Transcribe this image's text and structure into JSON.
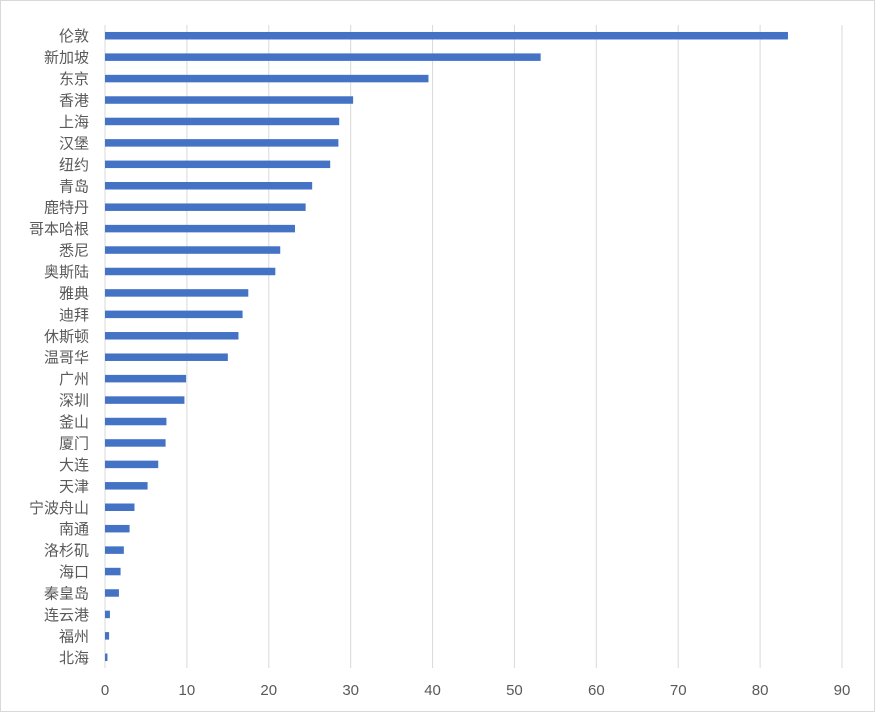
{
  "chart_data": {
    "type": "bar",
    "orientation": "horizontal",
    "title": "",
    "xlabel": "",
    "ylabel": "",
    "xlim": [
      0,
      90
    ],
    "x_ticks": [
      0,
      10,
      20,
      30,
      40,
      50,
      60,
      70,
      80,
      90
    ],
    "grid": "vertical",
    "legend": "none",
    "categories": [
      "伦敦",
      "新加坡",
      "东京",
      "香港",
      "上海",
      "汉堡",
      "纽约",
      "青岛",
      "鹿特丹",
      "哥本哈根",
      "悉尼",
      "奥斯陆",
      "雅典",
      "迪拜",
      "休斯顿",
      "温哥华",
      "广州",
      "深圳",
      "釜山",
      "厦门",
      "大连",
      "天津",
      "宁波舟山",
      "南通",
      "洛杉矶",
      "海口",
      "秦皇岛",
      "连云港",
      "福州",
      "北海"
    ],
    "values": [
      83.4,
      53.2,
      39.5,
      30.3,
      28.6,
      28.5,
      27.5,
      25.3,
      24.5,
      23.2,
      21.4,
      20.8,
      17.5,
      16.8,
      16.3,
      15.0,
      9.9,
      9.7,
      7.5,
      7.4,
      6.5,
      5.2,
      3.6,
      3.0,
      2.3,
      1.9,
      1.7,
      0.6,
      0.5,
      0.3
    ],
    "colors": {
      "bar": "#4472c4",
      "grid": "#d9d9d9",
      "text": "#595959"
    }
  }
}
